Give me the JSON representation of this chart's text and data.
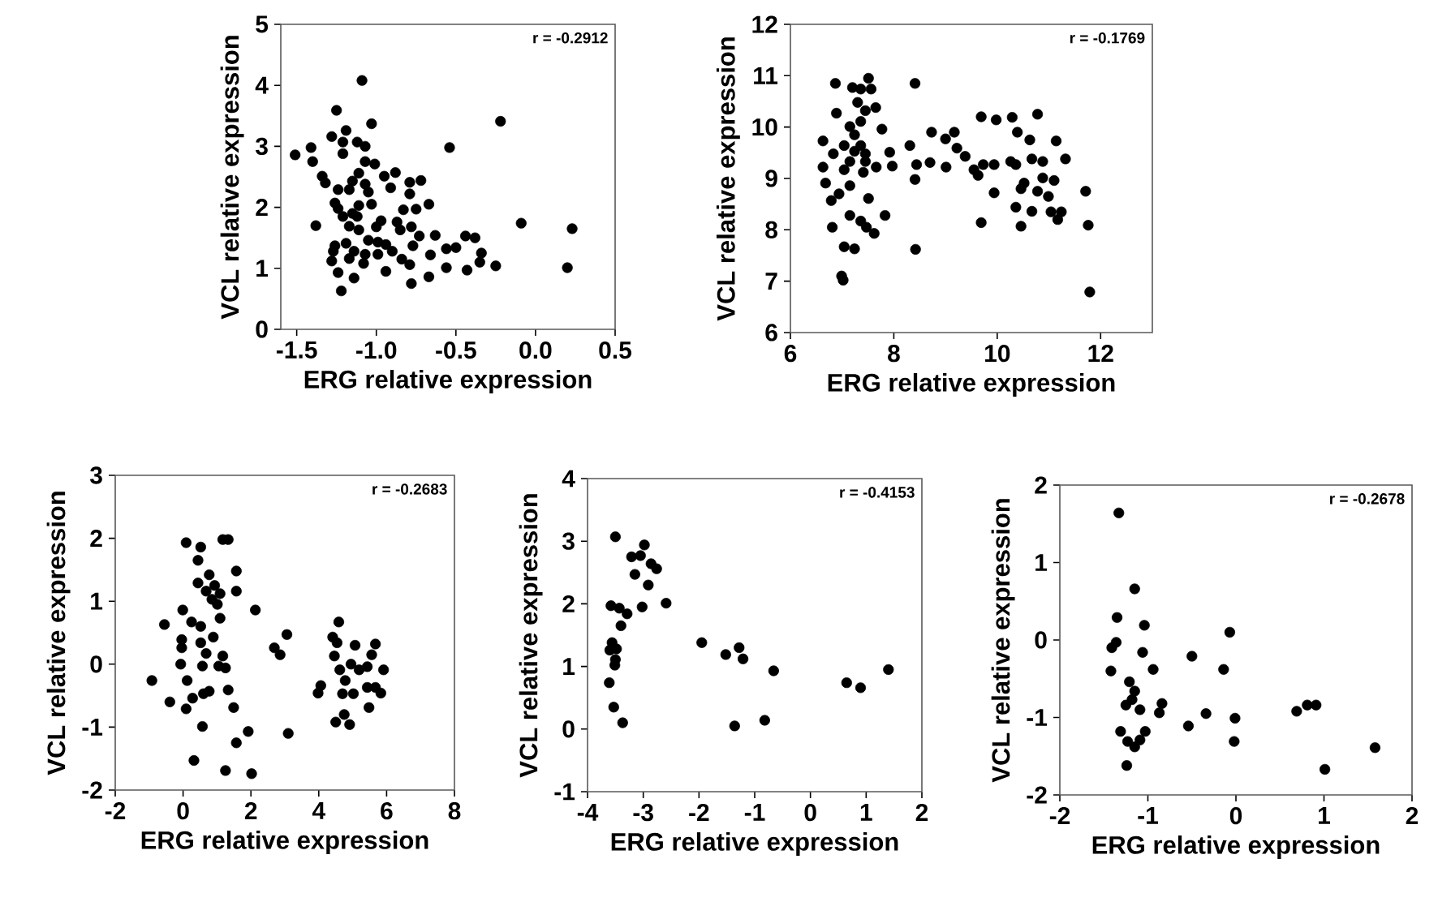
{
  "chart_data": [
    {
      "type": "scatter",
      "xlabel": "ERG relative expression",
      "ylabel": "VCL relative expression",
      "annotations": [
        "r = -0.2912"
      ],
      "color": "#000000",
      "marker": "circle",
      "xlim": [
        -1.6,
        0.5
      ],
      "ylim": [
        0,
        5
      ],
      "xticks": [
        -1.5,
        {
          "value": -1,
          "label": "-1.0"
        },
        -0.5,
        {
          "value": 0,
          "label": "0.0"
        },
        0.5
      ],
      "yticks": [
        0,
        1,
        2,
        3,
        4,
        5
      ],
      "x": [
        -1.09,
        -1.25,
        -1.03,
        -0.22,
        -0.54,
        -1.51,
        -1.41,
        -1.28,
        -1.19,
        -1.21,
        -1.12,
        -1.07,
        -1.21,
        -1.4,
        -1.07,
        -1.01,
        -1.34,
        -1.32,
        -1.11,
        -1.15,
        -1.07,
        -0.95,
        -0.88,
        -0.91,
        -0.79,
        -0.72,
        -1.24,
        -1.17,
        -1.05,
        -0.79,
        -1.24,
        -1.26,
        -1.03,
        -0.67,
        -0.83,
        -0.75,
        -1.21,
        -1.12,
        -0.97,
        -0.87,
        -0.09,
        0.23,
        -1.38,
        -1.17,
        -1.11,
        -0.85,
        -0.78,
        -0.73,
        -0.63,
        -0.44,
        -0.38,
        -1.26,
        -1.19,
        -1.05,
        -0.99,
        -0.94,
        -0.77,
        -0.56,
        -0.5,
        -1.27,
        -1.14,
        -1.07,
        -0.99,
        -0.9,
        -0.66,
        -0.34,
        -1.28,
        -1.17,
        -1.08,
        -0.84,
        -0.79,
        -0.35,
        -0.56,
        -0.43,
        -0.25,
        0.2,
        -1.24,
        -1.14,
        -0.94,
        -0.78,
        -0.67,
        -1.22,
        -1.15,
        -1.0,
        -1.11
      ],
      "values": [
        4.08,
        3.59,
        3.37,
        3.41,
        2.98,
        2.86,
        2.98,
        3.16,
        3.26,
        3.07,
        3.07,
        3.0,
        2.88,
        2.75,
        2.75,
        2.71,
        2.51,
        2.4,
        2.56,
        2.43,
        2.38,
        2.51,
        2.57,
        2.32,
        2.41,
        2.44,
        2.29,
        2.29,
        2.25,
        2.22,
        1.98,
        2.07,
        2.05,
        2.05,
        1.96,
        1.97,
        1.85,
        1.85,
        1.78,
        1.76,
        1.74,
        1.65,
        1.7,
        1.69,
        1.63,
        1.63,
        1.68,
        1.53,
        1.54,
        1.53,
        1.5,
        1.37,
        1.41,
        1.46,
        1.43,
        1.39,
        1.37,
        1.32,
        1.34,
        1.28,
        1.28,
        1.23,
        1.23,
        1.28,
        1.22,
        1.25,
        1.12,
        1.16,
        1.08,
        1.15,
        1.06,
        1.1,
        1.01,
        0.97,
        1.04,
        1.01,
        0.93,
        0.84,
        0.95,
        0.75,
        0.86,
        0.63,
        1.9,
        1.68,
        2.03
      ]
    },
    {
      "type": "scatter",
      "xlabel": "ERG relative expression",
      "ylabel": "VCL relative expression",
      "annotations": [
        "r = -0.1769"
      ],
      "color": "#000000",
      "marker": "circle",
      "xlim": [
        6,
        13
      ],
      "ylim": [
        6,
        12
      ],
      "xticks": [
        6,
        8,
        10,
        12
      ],
      "yticks": [
        6,
        7,
        8,
        9,
        10,
        11,
        12
      ],
      "x": [
        6.87,
        7.51,
        7.2,
        7.36,
        7.56,
        8.41,
        6.89,
        7.65,
        6.63,
        7.15,
        7.36,
        7.77,
        8.73,
        9.17,
        9.0,
        9.69,
        9.98,
        10.29,
        10.78,
        10.39,
        10.63,
        11.14,
        8.31,
        9.22,
        9.38,
        6.63,
        6.83,
        7.04,
        7.24,
        7.45,
        7.66,
        7.92,
        7.97,
        8.44,
        8.7,
        9.01,
        9.55,
        9.73,
        9.94,
        10.26,
        10.36,
        10.67,
        10.88,
        11.32,
        8.41,
        9.63,
        10.52,
        10.88,
        11.1,
        6.68,
        6.94,
        6.79,
        7.15,
        7.51,
        9.94,
        10.46,
        10.78,
        11.71,
        10.99,
        7.83,
        7.15,
        7.36,
        10.36,
        10.67,
        11.04,
        11.24,
        11.17,
        6.81,
        7.47,
        7.62,
        9.69,
        10.46,
        11.76,
        7.04,
        7.24,
        8.42,
        6.99,
        7.02,
        11.79,
        7.24,
        7.36,
        7.45,
        7.15,
        7.41,
        7.3,
        7.45,
        7.04
      ],
      "values": [
        10.85,
        10.95,
        10.77,
        10.74,
        10.74,
        10.85,
        10.27,
        10.38,
        9.73,
        10.01,
        10.11,
        9.96,
        9.9,
        9.9,
        9.77,
        10.2,
        10.14,
        10.19,
        10.25,
        9.9,
        9.75,
        9.73,
        9.64,
        9.59,
        9.43,
        9.22,
        9.48,
        9.64,
        9.53,
        9.33,
        9.22,
        9.51,
        9.24,
        9.27,
        9.31,
        9.22,
        9.17,
        9.27,
        9.27,
        9.33,
        9.27,
        9.38,
        9.33,
        9.38,
        8.98,
        9.06,
        8.91,
        9.01,
        8.96,
        8.91,
        8.7,
        8.57,
        8.86,
        8.61,
        8.72,
        8.8,
        8.75,
        8.75,
        8.65,
        8.28,
        8.28,
        8.17,
        8.44,
        8.36,
        8.35,
        8.35,
        8.2,
        8.05,
        8.05,
        7.93,
        8.14,
        8.07,
        8.09,
        7.67,
        7.63,
        7.62,
        7.1,
        7.02,
        6.79,
        9.85,
        9.64,
        9.48,
        9.33,
        9.12,
        10.48,
        10.32,
        9.17
      ]
    },
    {
      "type": "scatter",
      "xlabel": "ERG relative expression",
      "ylabel": "VCL relative expression",
      "annotations": [
        "r = -0.2683"
      ],
      "color": "#000000",
      "marker": "circle",
      "xlim": [
        -2,
        8
      ],
      "ylim": [
        -2,
        3
      ],
      "xticks": [
        -2,
        0,
        2,
        4,
        6,
        8
      ],
      "yticks": [
        -2,
        -1,
        0,
        1,
        2,
        3
      ],
      "x": [
        0.09,
        0.52,
        0.44,
        1.17,
        1.33,
        1.57,
        0.77,
        0.44,
        0.93,
        0.68,
        1.09,
        1.57,
        0.85,
        1.01,
        1.09,
        2.13,
        -0.01,
        -0.55,
        0.25,
        0.52,
        0.89,
        -0.04,
        -0.04,
        0.52,
        0.68,
        1.17,
        -0.07,
        0.57,
        1.05,
        1.25,
        -0.92,
        0.12,
        -0.39,
        0.09,
        0.28,
        0.6,
        0.77,
        1.33,
        1.49,
        0.57,
        1.92,
        1.57,
        0.32,
        1.25,
        2.02,
        2.69,
        2.86,
        3.06,
        3.1,
        4.59,
        4.41,
        4.54,
        5.07,
        5.67,
        4.46,
        4.95,
        5.56,
        4.62,
        5.19,
        5.43,
        5.91,
        4.78,
        4.06,
        3.98,
        4.7,
        5.02,
        5.43,
        5.67,
        5.83,
        5.48,
        4.75,
        4.5,
        4.91
      ],
      "values": [
        1.93,
        1.86,
        1.65,
        1.98,
        1.98,
        1.48,
        1.42,
        1.29,
        1.25,
        1.16,
        1.12,
        1.16,
        1.03,
        0.95,
        0.73,
        0.86,
        0.86,
        0.63,
        0.67,
        0.6,
        0.43,
        0.39,
        0.26,
        0.34,
        0.17,
        0.13,
        0.0,
        -0.03,
        -0.03,
        -0.06,
        -0.26,
        -0.26,
        -0.6,
        -0.71,
        -0.54,
        -0.47,
        -0.43,
        -0.41,
        -0.69,
        -0.99,
        -1.07,
        -1.25,
        -1.53,
        -1.69,
        -1.74,
        0.26,
        0.15,
        0.47,
        -1.1,
        0.67,
        0.43,
        0.34,
        0.3,
        0.32,
        0.13,
        0.0,
        0.15,
        -0.09,
        -0.09,
        -0.04,
        -0.09,
        -0.26,
        -0.34,
        -0.46,
        -0.47,
        -0.47,
        -0.37,
        -0.37,
        -0.46,
        -0.69,
        -0.8,
        -0.92,
        -0.96
      ]
    },
    {
      "type": "scatter",
      "xlabel": "ERG relative expression",
      "ylabel": "VCL relative expression",
      "annotations": [
        "r = -0.4153"
      ],
      "color": "#000000",
      "marker": "circle",
      "xlim": [
        -4,
        2
      ],
      "ylim": [
        -1,
        4
      ],
      "xticks": [
        -4,
        -3,
        -2,
        -1,
        0,
        1,
        2
      ],
      "yticks": [
        -1,
        0,
        1,
        2,
        3,
        4
      ],
      "x": [
        -3.5,
        -2.98,
        -3.21,
        -3.05,
        -2.86,
        -2.76,
        -3.15,
        -2.91,
        -3.58,
        -3.43,
        -3.29,
        -3.02,
        -2.59,
        -3.4,
        -3.56,
        -3.48,
        -3.6,
        -3.5,
        -3.51,
        -3.61,
        -3.53,
        -3.37,
        -1.95,
        -1.52,
        -1.28,
        -1.21,
        -0.66,
        -1.36,
        -0.82,
        0.65,
        0.9,
        1.4
      ],
      "values": [
        3.07,
        2.94,
        2.75,
        2.77,
        2.64,
        2.56,
        2.47,
        2.3,
        1.97,
        1.93,
        1.84,
        1.95,
        2.01,
        1.65,
        1.38,
        1.28,
        1.26,
        1.11,
        1.02,
        0.74,
        0.35,
        0.1,
        1.38,
        1.19,
        1.3,
        1.12,
        0.93,
        0.05,
        0.14,
        0.74,
        0.66,
        0.95
      ]
    },
    {
      "type": "scatter",
      "xlabel": "ERG relative expression",
      "ylabel": "VCL relative expression",
      "annotations": [
        "r = -0.2678"
      ],
      "color": "#000000",
      "marker": "circle",
      "xlim": [
        -2,
        2
      ],
      "ylim": [
        -2,
        2
      ],
      "xticks": [
        -2,
        -1,
        0,
        1,
        2
      ],
      "yticks": [
        -2,
        -1,
        0,
        1,
        2
      ],
      "x": [
        -1.33,
        -1.15,
        -1.35,
        -1.04,
        -0.07,
        -1.36,
        -1.41,
        -1.06,
        -0.5,
        -1.42,
        -0.94,
        -0.14,
        -1.21,
        -1.15,
        -1.18,
        -0.84,
        -1.25,
        -1.09,
        -0.87,
        -0.34,
        -0.01,
        0.69,
        0.81,
        0.91,
        -1.31,
        -1.03,
        -0.54,
        -0.02,
        -1.23,
        -1.15,
        -1.24,
        1.01,
        1.58,
        -1.09
      ],
      "values": [
        1.64,
        0.66,
        0.29,
        0.19,
        0.1,
        -0.03,
        -0.1,
        -0.16,
        -0.21,
        -0.4,
        -0.38,
        -0.38,
        -0.54,
        -0.66,
        -0.77,
        -0.82,
        -0.84,
        -0.9,
        -0.94,
        -0.95,
        -1.01,
        -0.92,
        -0.84,
        -0.84,
        -1.18,
        -1.18,
        -1.11,
        -1.31,
        -1.31,
        -1.38,
        -1.62,
        -1.67,
        -1.39,
        -1.29
      ]
    }
  ]
}
